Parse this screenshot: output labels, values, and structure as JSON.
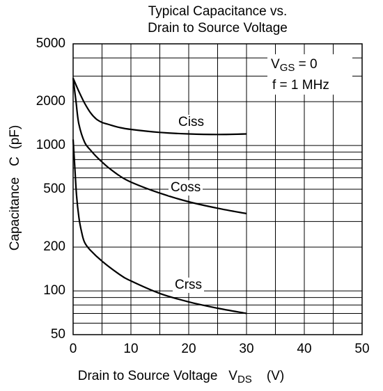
{
  "chart_data": {
    "type": "line",
    "title": [
      "Typical Capacitance vs.",
      "Drain to Source Voltage"
    ],
    "xlabel": {
      "text": "Drain to Source Voltage",
      "symbol": "V",
      "subscript": "DS",
      "unit": "(V)"
    },
    "ylabel": {
      "text": "Capacitance",
      "symbol": "C",
      "unit": "(pF)"
    },
    "xlim": [
      0,
      50
    ],
    "ylim": [
      50,
      5000
    ],
    "yscale": "log",
    "grid": true,
    "x_ticks": [
      "0",
      "10",
      "20",
      "30",
      "40",
      "50"
    ],
    "y_ticks": [
      "50",
      "100",
      "200",
      "500",
      "1000",
      "2000",
      "5000"
    ],
    "annotations": [
      {
        "symbol": "V",
        "subscript": "GS",
        "text": " = 0"
      },
      {
        "text": "f = 1 MHz"
      }
    ],
    "series": [
      {
        "name": "Ciss",
        "x": [
          0,
          1,
          2,
          3,
          4,
          5,
          6,
          8,
          10,
          15,
          20,
          25,
          30
        ],
        "y": [
          2900,
          2350,
          1950,
          1680,
          1520,
          1440,
          1400,
          1330,
          1290,
          1230,
          1200,
          1190,
          1200
        ]
      },
      {
        "name": "Coss",
        "x": [
          0,
          0.5,
          1,
          2,
          3,
          4,
          5,
          6,
          8,
          10,
          15,
          20,
          25,
          30
        ],
        "y": [
          2900,
          2000,
          1400,
          1050,
          930,
          840,
          770,
          710,
          620,
          560,
          470,
          410,
          370,
          340
        ]
      },
      {
        "name": "Crss",
        "x": [
          0,
          0.3,
          0.6,
          1,
          1.5,
          2,
          3,
          5,
          8,
          10,
          15,
          20,
          25,
          30
        ],
        "y": [
          1100,
          700,
          450,
          320,
          250,
          215,
          190,
          160,
          130,
          117,
          96,
          84,
          76,
          70
        ]
      }
    ]
  }
}
